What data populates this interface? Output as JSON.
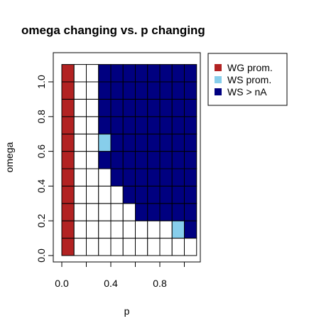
{
  "chart_data": {
    "type": "heatmap",
    "title": "omega changing vs. p changing",
    "xlabel": "p",
    "ylabel": "omega",
    "xlim": [
      -0.1,
      1.15
    ],
    "ylim": [
      -0.05,
      1.15
    ],
    "x_ticks": [
      0.0,
      0.2,
      0.4,
      0.6,
      0.8,
      1.0
    ],
    "x_tick_labels": [
      "0.0",
      "",
      "0.4",
      "",
      "0.8",
      ""
    ],
    "y_ticks": [
      0.0,
      0.2,
      0.4,
      0.6,
      0.8,
      1.0
    ],
    "y_tick_labels": [
      "0.0",
      "0.2",
      "0.4",
      "0.6",
      "0.8",
      "1.0"
    ],
    "x": [
      0.0,
      0.1,
      0.2,
      0.3,
      0.4,
      0.5,
      0.6,
      0.7,
      0.8,
      0.9,
      1.0,
      1.1
    ],
    "y": [
      0.0,
      0.1,
      0.2,
      0.3,
      0.4,
      0.5,
      0.6,
      0.7,
      0.8,
      0.9,
      1.0,
      1.1
    ],
    "category_colors": {
      "0": "#ffffff",
      "1": "#b22222",
      "2": "#87ceeb",
      "3": "#000080"
    },
    "grid": [
      [
        1,
        0,
        0,
        0,
        0,
        0,
        0,
        0,
        0,
        0,
        0
      ],
      [
        1,
        0,
        0,
        0,
        0,
        0,
        0,
        0,
        0,
        2,
        3
      ],
      [
        1,
        0,
        0,
        0,
        0,
        0,
        3,
        3,
        3,
        3,
        3
      ],
      [
        1,
        0,
        0,
        0,
        0,
        3,
        3,
        3,
        3,
        3,
        3
      ],
      [
        1,
        0,
        0,
        0,
        3,
        3,
        3,
        3,
        3,
        3,
        3
      ],
      [
        1,
        0,
        0,
        3,
        3,
        3,
        3,
        3,
        3,
        3,
        3
      ],
      [
        1,
        0,
        0,
        2,
        3,
        3,
        3,
        3,
        3,
        3,
        3
      ],
      [
        1,
        0,
        0,
        3,
        3,
        3,
        3,
        3,
        3,
        3,
        3
      ],
      [
        1,
        0,
        0,
        3,
        3,
        3,
        3,
        3,
        3,
        3,
        3
      ],
      [
        1,
        0,
        0,
        3,
        3,
        3,
        3,
        3,
        3,
        3,
        3
      ],
      [
        1,
        0,
        0,
        3,
        3,
        3,
        3,
        3,
        3,
        3,
        3
      ]
    ],
    "legend": {
      "placement": "top-right outside",
      "entries": [
        {
          "label": "WG prom.",
          "color": "#b22222"
        },
        {
          "label": "WS prom.",
          "color": "#87ceeb"
        },
        {
          "label": "WS > nA",
          "color": "#000080"
        }
      ]
    }
  }
}
